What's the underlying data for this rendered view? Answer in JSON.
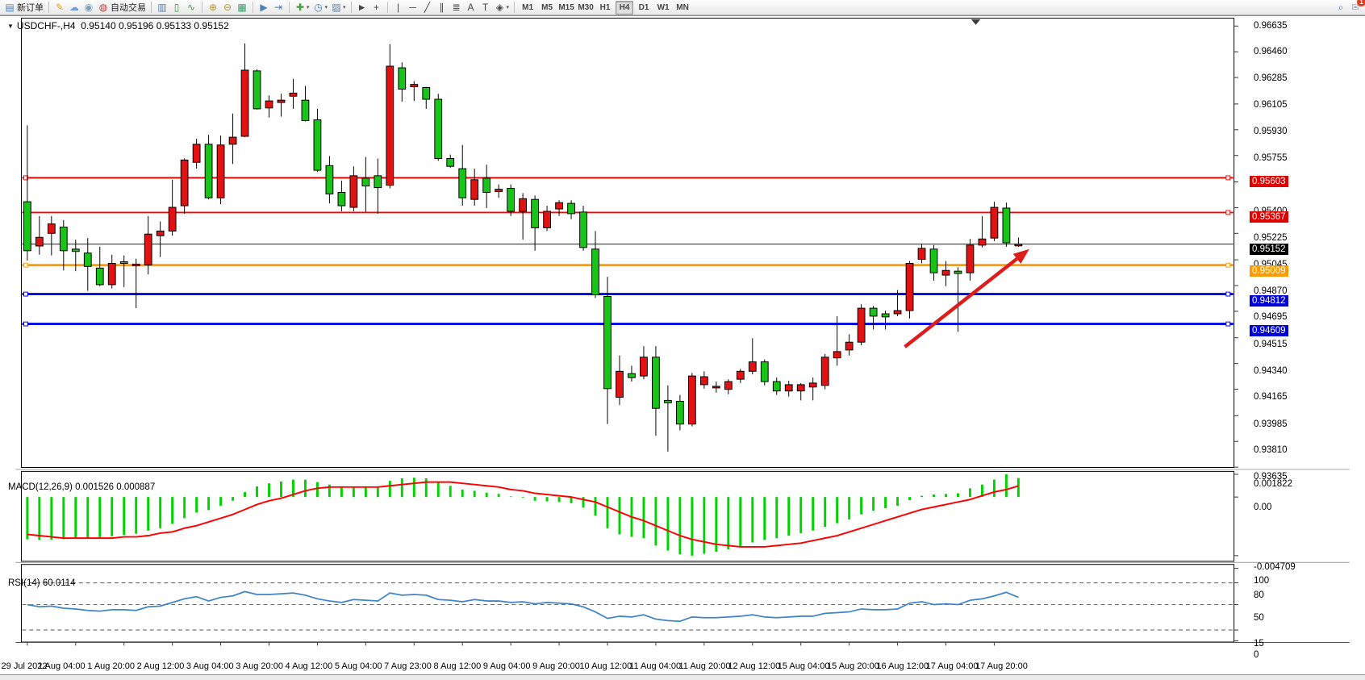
{
  "toolbar": {
    "items": [
      {
        "t": "icon",
        "name": "new-order-icon",
        "glyph": "▤",
        "color": "#4a7fbf",
        "label": "新订单"
      },
      {
        "t": "sep"
      },
      {
        "t": "icon",
        "name": "highlighter-icon",
        "glyph": "✎",
        "color": "#d9a520"
      },
      {
        "t": "icon",
        "name": "cloud-icon",
        "glyph": "☁",
        "color": "#6f9fd8"
      },
      {
        "t": "icon",
        "name": "broadcast-icon",
        "glyph": "◉",
        "color": "#7aa0c4"
      },
      {
        "t": "icon",
        "name": "autotrade-icon",
        "glyph": "◍",
        "color": "#cc3333",
        "label": "自动交易"
      },
      {
        "t": "sep"
      },
      {
        "t": "icon",
        "name": "chart-bars-icon",
        "glyph": "▥",
        "color": "#5a7fae"
      },
      {
        "t": "icon",
        "name": "chart-candles-icon",
        "glyph": "▯",
        "color": "#3da03d"
      },
      {
        "t": "icon",
        "name": "chart-line-icon",
        "glyph": "∿",
        "color": "#3da03d"
      },
      {
        "t": "sep"
      },
      {
        "t": "icon",
        "name": "zoom-in-icon",
        "glyph": "⊕",
        "color": "#b8922e"
      },
      {
        "t": "icon",
        "name": "zoom-out-icon",
        "glyph": "⊖",
        "color": "#b8922e"
      },
      {
        "t": "icon",
        "name": "tile-windows-icon",
        "glyph": "▦",
        "color": "#3da06a"
      },
      {
        "t": "sep"
      },
      {
        "t": "icon",
        "name": "autoscroll-icon",
        "glyph": "▶",
        "color": "#4a7fbf"
      },
      {
        "t": "icon",
        "name": "chart-shift-icon",
        "glyph": "⇥",
        "color": "#4a7fbf"
      },
      {
        "t": "sep"
      },
      {
        "t": "icon",
        "name": "indicators-icon",
        "glyph": "✚",
        "color": "#3da03d",
        "caret": true
      },
      {
        "t": "icon",
        "name": "periods-icon",
        "glyph": "◷",
        "color": "#4a7fbf",
        "caret": true
      },
      {
        "t": "icon",
        "name": "templates-icon",
        "glyph": "▨",
        "color": "#5a7fae",
        "caret": true
      },
      {
        "t": "sep"
      },
      {
        "t": "icon",
        "name": "cursor-icon",
        "glyph": "►",
        "color": "#444444"
      },
      {
        "t": "icon",
        "name": "crosshair-icon",
        "glyph": "+",
        "color": "#444444"
      },
      {
        "t": "sep"
      },
      {
        "t": "icon",
        "name": "vline-icon",
        "glyph": "|",
        "color": "#444444"
      },
      {
        "t": "icon",
        "name": "hline-icon",
        "glyph": "─",
        "color": "#444444"
      },
      {
        "t": "icon",
        "name": "trendline-icon",
        "glyph": "╱",
        "color": "#444444"
      },
      {
        "t": "icon",
        "name": "channel-icon",
        "glyph": "∥",
        "color": "#444444"
      },
      {
        "t": "icon",
        "name": "fibonacci-icon",
        "glyph": "≣",
        "color": "#444444"
      },
      {
        "t": "icon",
        "name": "text-icon",
        "glyph": "A",
        "color": "#444444"
      },
      {
        "t": "icon",
        "name": "label-icon",
        "glyph": "T",
        "color": "#444444"
      },
      {
        "t": "icon",
        "name": "shapes-icon",
        "glyph": "◈",
        "color": "#444444",
        "caret": true
      },
      {
        "t": "sep"
      },
      {
        "t": "tf",
        "label": "M1"
      },
      {
        "t": "tf",
        "label": "M5"
      },
      {
        "t": "tf",
        "label": "M15"
      },
      {
        "t": "tf",
        "label": "M30"
      },
      {
        "t": "tf",
        "label": "H1"
      },
      {
        "t": "tf",
        "label": "H4",
        "active": true
      },
      {
        "t": "tf",
        "label": "D1"
      },
      {
        "t": "tf",
        "label": "W1"
      },
      {
        "t": "tf",
        "label": "MN"
      },
      {
        "t": "spacer"
      },
      {
        "t": "icon",
        "name": "search-icon",
        "glyph": "⌕",
        "color": "#3a6fbf"
      },
      {
        "t": "icon",
        "name": "chat-icon",
        "glyph": "✉",
        "color": "#9aa6b5",
        "badge": "1"
      }
    ]
  },
  "window": {
    "title_symbol": "USDCHF-,H4",
    "title_ohlc": "0.95140 0.95196 0.95133 0.95152"
  },
  "indicators": {
    "macd_name": "MACD(12,26,9)",
    "macd_values": "0.001526 0.000887",
    "rsi_name": "RSI(14)",
    "rsi_value": "60.0114"
  },
  "chart_data": {
    "type": "candlestick",
    "symbol": "USDCHF-",
    "timeframe": "H4",
    "last_bar_ohlc": [
      0.9514,
      0.95196,
      0.95133,
      0.95152
    ],
    "colors": {
      "bull": "#e31212",
      "bear": "#18c418",
      "wick": "#000000",
      "hist": "#00d400",
      "signal": "#ff0000",
      "rsi_line": "#3f86c9",
      "arrow": "#dd1c1c"
    },
    "note_color_convention": "red = up candle, green = down candle",
    "price_axis_ticks": [
      0.96635,
      0.9646,
      0.96285,
      0.96105,
      0.9593,
      0.95755,
      0.95575,
      0.954,
      0.95225,
      0.95045,
      0.9487,
      0.94695,
      0.94515,
      0.9434,
      0.94165,
      0.93985,
      0.9381,
      0.93635
    ],
    "price_badges": [
      {
        "price": 0.95603,
        "text": "0.95603",
        "color": "#e00000"
      },
      {
        "price": 0.95367,
        "text": "0.95367",
        "color": "#e00000"
      },
      {
        "price": 0.95152,
        "text": "0.95152",
        "color": "#000000"
      },
      {
        "price": 0.95009,
        "text": "0.95009",
        "color": "#ff9c00"
      },
      {
        "price": 0.94812,
        "text": "0.94812",
        "color": "#0000d8"
      },
      {
        "price": 0.94609,
        "text": "0.94609",
        "color": "#0000d8"
      }
    ],
    "hlines": [
      {
        "price": 0.95603,
        "color": "#ff0000",
        "width": 2,
        "markers": true
      },
      {
        "price": 0.95367,
        "color": "#ff0000",
        "width": 2,
        "markers": true
      },
      {
        "price": 0.95152,
        "color": "#202020",
        "width": 1,
        "markers": false
      },
      {
        "price": 0.95009,
        "color": "#ff9c00",
        "width": 3,
        "markers": true
      },
      {
        "price": 0.94812,
        "color": "#0000e8",
        "width": 3,
        "markers": true
      },
      {
        "price": 0.94609,
        "color": "#0000e8",
        "width": 3,
        "markers": true
      }
    ],
    "arrow": {
      "from_bar": 72.6,
      "from_price": 0.94453,
      "to_bar": 82.9,
      "to_price": 0.95118
    },
    "x_labels": [
      "29 Jul 2022",
      "1 Aug 04:00",
      "1 Aug 20:00",
      "2 Aug 12:00",
      "3 Aug 04:00",
      "3 Aug 20:00",
      "4 Aug 12:00",
      "5 Aug 04:00",
      "7 Aug 23:00",
      "8 Aug 12:00",
      "9 Aug 04:00",
      "9 Aug 20:00",
      "10 Aug 12:00",
      "11 Aug 04:00",
      "11 Aug 20:00",
      "12 Aug 12:00",
      "15 Aug 04:00",
      "15 Aug 20:00",
      "16 Aug 12:00",
      "17 Aug 04:00",
      "17 Aug 20:00"
    ],
    "bars_per_label": 4,
    "candles": [
      [
        0.9544,
        0.9596,
        0.9504,
        0.95107
      ],
      [
        0.95139,
        0.95343,
        0.9508,
        0.95198
      ],
      [
        0.95225,
        0.95343,
        0.95075,
        0.95289
      ],
      [
        0.95268,
        0.95316,
        0.94973,
        0.95107
      ],
      [
        0.95118,
        0.95182,
        0.94968,
        0.95102
      ],
      [
        0.95091,
        0.95193,
        0.94834,
        0.95
      ],
      [
        0.94989,
        0.95134,
        0.94866,
        0.94876
      ],
      [
        0.94876,
        0.9508,
        0.9485,
        0.95021
      ],
      [
        0.95032,
        0.95075,
        0.9486,
        0.95021
      ],
      [
        0.95005,
        0.95053,
        0.94716,
        0.95016
      ],
      [
        0.95011,
        0.95343,
        0.94946,
        0.9522
      ],
      [
        0.95209,
        0.95306,
        0.95064,
        0.95241
      ],
      [
        0.95241,
        0.9559,
        0.95209,
        0.95402
      ],
      [
        0.95413,
        0.95734,
        0.95359,
        0.95724
      ],
      [
        0.95708,
        0.95869,
        0.95665,
        0.95831
      ],
      [
        0.95831,
        0.95895,
        0.95456,
        0.95467
      ],
      [
        0.95467,
        0.9589,
        0.95424,
        0.95826
      ],
      [
        0.95831,
        0.9604,
        0.95697,
        0.95879
      ],
      [
        0.95885,
        0.96517,
        0.95879,
        0.96335
      ],
      [
        0.9633,
        0.9634,
        0.96067,
        0.96072
      ],
      [
        0.96078,
        0.96163,
        0.96013,
        0.96126
      ],
      [
        0.96115,
        0.96174,
        0.96019,
        0.96131
      ],
      [
        0.96158,
        0.96276,
        0.96072,
        0.96179
      ],
      [
        0.96131,
        0.96228,
        0.95986,
        0.95992
      ],
      [
        0.95997,
        0.96072,
        0.95643,
        0.95654
      ],
      [
        0.95686,
        0.95751,
        0.95429,
        0.95493
      ],
      [
        0.95504,
        0.95584,
        0.95375,
        0.95413
      ],
      [
        0.95402,
        0.95681,
        0.95375,
        0.95617
      ],
      [
        0.956,
        0.95745,
        0.9537,
        0.95547
      ],
      [
        0.95617,
        0.95734,
        0.95359,
        0.95536
      ],
      [
        0.95552,
        0.96512,
        0.95531,
        0.96362
      ],
      [
        0.96351,
        0.96388,
        0.96121,
        0.96206
      ],
      [
        0.96222,
        0.9626,
        0.96126,
        0.96238
      ],
      [
        0.96217,
        0.96222,
        0.96072,
        0.96137
      ],
      [
        0.96137,
        0.96174,
        0.95718,
        0.95734
      ],
      [
        0.95734,
        0.95761,
        0.9567,
        0.95681
      ],
      [
        0.95665,
        0.95826,
        0.95413,
        0.95467
      ],
      [
        0.95456,
        0.95665,
        0.95413,
        0.9559
      ],
      [
        0.956,
        0.95692,
        0.95397,
        0.95504
      ],
      [
        0.95509,
        0.95558,
        0.95467,
        0.95525
      ],
      [
        0.95531,
        0.95558,
        0.95343,
        0.95375
      ],
      [
        0.95375,
        0.95499,
        0.95182,
        0.95461
      ],
      [
        0.95456,
        0.95483,
        0.95107,
        0.95263
      ],
      [
        0.95263,
        0.95413,
        0.95241,
        0.95375
      ],
      [
        0.95391,
        0.9545,
        0.95343,
        0.95434
      ],
      [
        0.95429,
        0.9545,
        0.95321,
        0.95359
      ],
      [
        0.9537,
        0.95413,
        0.95107,
        0.95129
      ],
      [
        0.95118,
        0.95241,
        0.94786,
        0.94807
      ],
      [
        0.94796,
        0.9493,
        0.93928,
        0.94169
      ],
      [
        0.9411,
        0.94394,
        0.94057,
        0.94287
      ],
      [
        0.94271,
        0.94325,
        0.94217,
        0.94244
      ],
      [
        0.94255,
        0.94458,
        0.94233,
        0.94383
      ],
      [
        0.94383,
        0.94458,
        0.93848,
        0.94035
      ],
      [
        0.94089,
        0.94191,
        0.93741,
        0.94073
      ],
      [
        0.94083,
        0.94126,
        0.93885,
        0.93928
      ],
      [
        0.93928,
        0.94276,
        0.93912,
        0.94255
      ],
      [
        0.94196,
        0.94287,
        0.94169,
        0.9425
      ],
      [
        0.94174,
        0.94217,
        0.94142,
        0.94185
      ],
      [
        0.94164,
        0.94233,
        0.94131,
        0.94217
      ],
      [
        0.94233,
        0.94303,
        0.94207,
        0.94287
      ],
      [
        0.94287,
        0.94512,
        0.94266,
        0.94351
      ],
      [
        0.94351,
        0.94368,
        0.94191,
        0.94217
      ],
      [
        0.94217,
        0.94244,
        0.94126,
        0.94153
      ],
      [
        0.94153,
        0.94223,
        0.94115,
        0.94196
      ],
      [
        0.94153,
        0.94207,
        0.94089,
        0.94196
      ],
      [
        0.9418,
        0.94244,
        0.94089,
        0.94207
      ],
      [
        0.94191,
        0.94405,
        0.94164,
        0.94383
      ],
      [
        0.94378,
        0.94662,
        0.94325,
        0.94421
      ],
      [
        0.94432,
        0.94539,
        0.94394,
        0.94485
      ],
      [
        0.94485,
        0.94743,
        0.94464,
        0.94716
      ],
      [
        0.94716,
        0.94732,
        0.94571,
        0.94662
      ],
      [
        0.94678,
        0.947,
        0.94571,
        0.94657
      ],
      [
        0.94678,
        0.94839,
        0.94662,
        0.947
      ],
      [
        0.947,
        0.95037,
        0.94646,
        0.95021
      ],
      [
        0.95048,
        0.95155,
        0.95021,
        0.95123
      ],
      [
        0.95118,
        0.95145,
        0.94904,
        0.94957
      ],
      [
        0.94941,
        0.95037,
        0.94866,
        0.94973
      ],
      [
        0.94968,
        0.94995,
        0.94555,
        0.94952
      ],
      [
        0.94957,
        0.95187,
        0.94904,
        0.95145
      ],
      [
        0.95145,
        0.95343,
        0.95129,
        0.95187
      ],
      [
        0.95193,
        0.9544,
        0.95172,
        0.95402
      ],
      [
        0.95397,
        0.95434,
        0.95134,
        0.95161
      ],
      [
        0.9514,
        0.95196,
        0.95133,
        0.95152
      ]
    ],
    "macd": {
      "params": "12,26,9",
      "main_value": 0.001526,
      "signal_value": 0.000887,
      "axis_ticks": [
        {
          "v": 0.001822,
          "text": "0.001822"
        },
        {
          "v": 0,
          "text": "0.00"
        },
        {
          "v": -0.004709,
          "text": "-0.004709"
        }
      ],
      "histogram": [
        -0.0034,
        -0.00345,
        -0.00342,
        -0.00338,
        -0.00335,
        -0.0033,
        -0.00325,
        -0.00315,
        -0.00305,
        -0.00295,
        -0.0027,
        -0.0025,
        -0.00215,
        -0.0017,
        -0.00125,
        -0.00105,
        -0.0007,
        -0.0003,
        0.0004,
        0.00085,
        0.0011,
        0.00125,
        0.0014,
        0.0014,
        0.0012,
        0.001,
        0.00085,
        0.00085,
        0.0008,
        0.00075,
        0.0013,
        0.0015,
        0.00155,
        0.0015,
        0.00115,
        0.0009,
        0.0006,
        0.0005,
        0.00035,
        0.00025,
        5e-05,
        -5e-05,
        -0.0003,
        -0.00035,
        -0.0004,
        -0.0005,
        -0.00085,
        -0.0015,
        -0.0025,
        -0.003,
        -0.0032,
        -0.0033,
        -0.0039,
        -0.0043,
        -0.0046,
        -0.004709,
        -0.00455,
        -0.0044,
        -0.0042,
        -0.00395,
        -0.00365,
        -0.00345,
        -0.0033,
        -0.0031,
        -0.0029,
        -0.0027,
        -0.0024,
        -0.0021,
        -0.0018,
        -0.0014,
        -0.0011,
        -0.0009,
        -0.0007,
        -0.00025,
        0.0001,
        0.0002,
        0.00025,
        0.0003,
        0.0007,
        0.001,
        0.0014,
        0.001822,
        0.001526
      ],
      "signal": [
        -0.003,
        -0.0031,
        -0.0032,
        -0.0033,
        -0.0033,
        -0.0033,
        -0.0033,
        -0.0033,
        -0.0032,
        -0.0032,
        -0.0031,
        -0.0029,
        -0.0028,
        -0.0025,
        -0.0023,
        -0.002,
        -0.0017,
        -0.0014,
        -0.001,
        -0.0006,
        -0.0003,
        -0.0001,
        0.0002,
        0.0005,
        0.0007,
        0.0008,
        0.0008,
        0.0008,
        0.0008,
        0.0008,
        0.0009,
        0.001,
        0.0011,
        0.0012,
        0.0012,
        0.0012,
        0.0011,
        0.001,
        0.0009,
        0.0008,
        0.0006,
        0.0005,
        0.0003,
        0.0002,
        0.0001,
        0.0,
        -0.0002,
        -0.0004,
        -0.0008,
        -0.0012,
        -0.0016,
        -0.0019,
        -0.0023,
        -0.0027,
        -0.0031,
        -0.0034,
        -0.0036,
        -0.0038,
        -0.0039,
        -0.004,
        -0.004,
        -0.004,
        -0.0039,
        -0.0038,
        -0.0037,
        -0.0035,
        -0.0033,
        -0.0031,
        -0.0028,
        -0.0025,
        -0.0022,
        -0.0019,
        -0.0016,
        -0.0013,
        -0.001,
        -0.0008,
        -0.0006,
        -0.0004,
        -0.0002,
        0.0001,
        0.0004,
        0.0006,
        0.000887
      ]
    },
    "rsi": {
      "period": 14,
      "value": 60.0114,
      "levels": [
        80,
        50,
        15
      ],
      "axis_ticks": [
        100,
        80,
        50,
        15,
        0
      ],
      "series": [
        50,
        47,
        48,
        45,
        44,
        42,
        41,
        43,
        43,
        42,
        47,
        48,
        53,
        58,
        61,
        55,
        60,
        62,
        68,
        64,
        64,
        65,
        66,
        63,
        58,
        55,
        53,
        57,
        56,
        55,
        66,
        63,
        64,
        63,
        57,
        56,
        54,
        57,
        55,
        55,
        53,
        54,
        51,
        53,
        52,
        51,
        47,
        40,
        31,
        34,
        33,
        36,
        30,
        28,
        27,
        33,
        32,
        32,
        33,
        34,
        36,
        33,
        32,
        33,
        34,
        34,
        38,
        39,
        40,
        44,
        43,
        43,
        44,
        52,
        54,
        50,
        51,
        50,
        56,
        58,
        62,
        67,
        60.0114
      ]
    }
  }
}
